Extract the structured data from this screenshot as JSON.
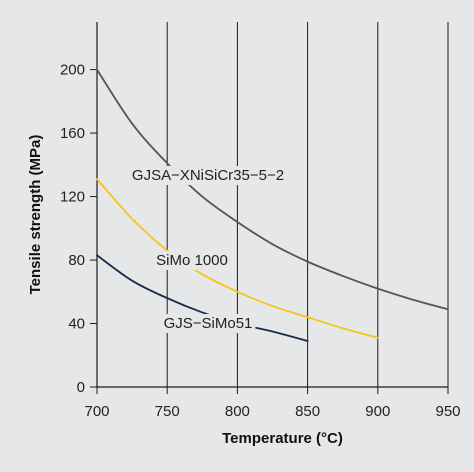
{
  "chart_data": {
    "type": "line",
    "title": "",
    "xlabel": "Temperature (°C)",
    "ylabel": "Tensile strength (MPa)",
    "xlim": [
      700,
      950
    ],
    "ylim": [
      0,
      230
    ],
    "x_ticks": [
      700,
      750,
      800,
      850,
      900,
      950
    ],
    "y_ticks": [
      0,
      40,
      80,
      120,
      160,
      200
    ],
    "grid": "vertical",
    "legend": "none",
    "series": [
      {
        "name": "GJSA−XNiSiCr35−5−2",
        "color": "#555555",
        "x": [
          700,
          725,
          750,
          775,
          800,
          825,
          850,
          875,
          900,
          925,
          950
        ],
        "y": [
          200,
          166,
          141,
          120,
          104,
          90,
          79,
          70,
          62,
          55,
          49
        ]
      },
      {
        "name": "SiMo 1000",
        "color": "#f5c518",
        "x": [
          700,
          725,
          750,
          775,
          800,
          825,
          850,
          875,
          900
        ],
        "y": [
          131,
          106,
          86,
          71,
          60,
          51,
          44,
          37,
          31
        ]
      },
      {
        "name": "GJS−SiMo51",
        "color": "#1a2a4a",
        "x": [
          700,
          725,
          750,
          775,
          800,
          825,
          850
        ],
        "y": [
          83,
          67,
          56,
          47,
          40,
          35,
          29
        ]
      }
    ]
  }
}
